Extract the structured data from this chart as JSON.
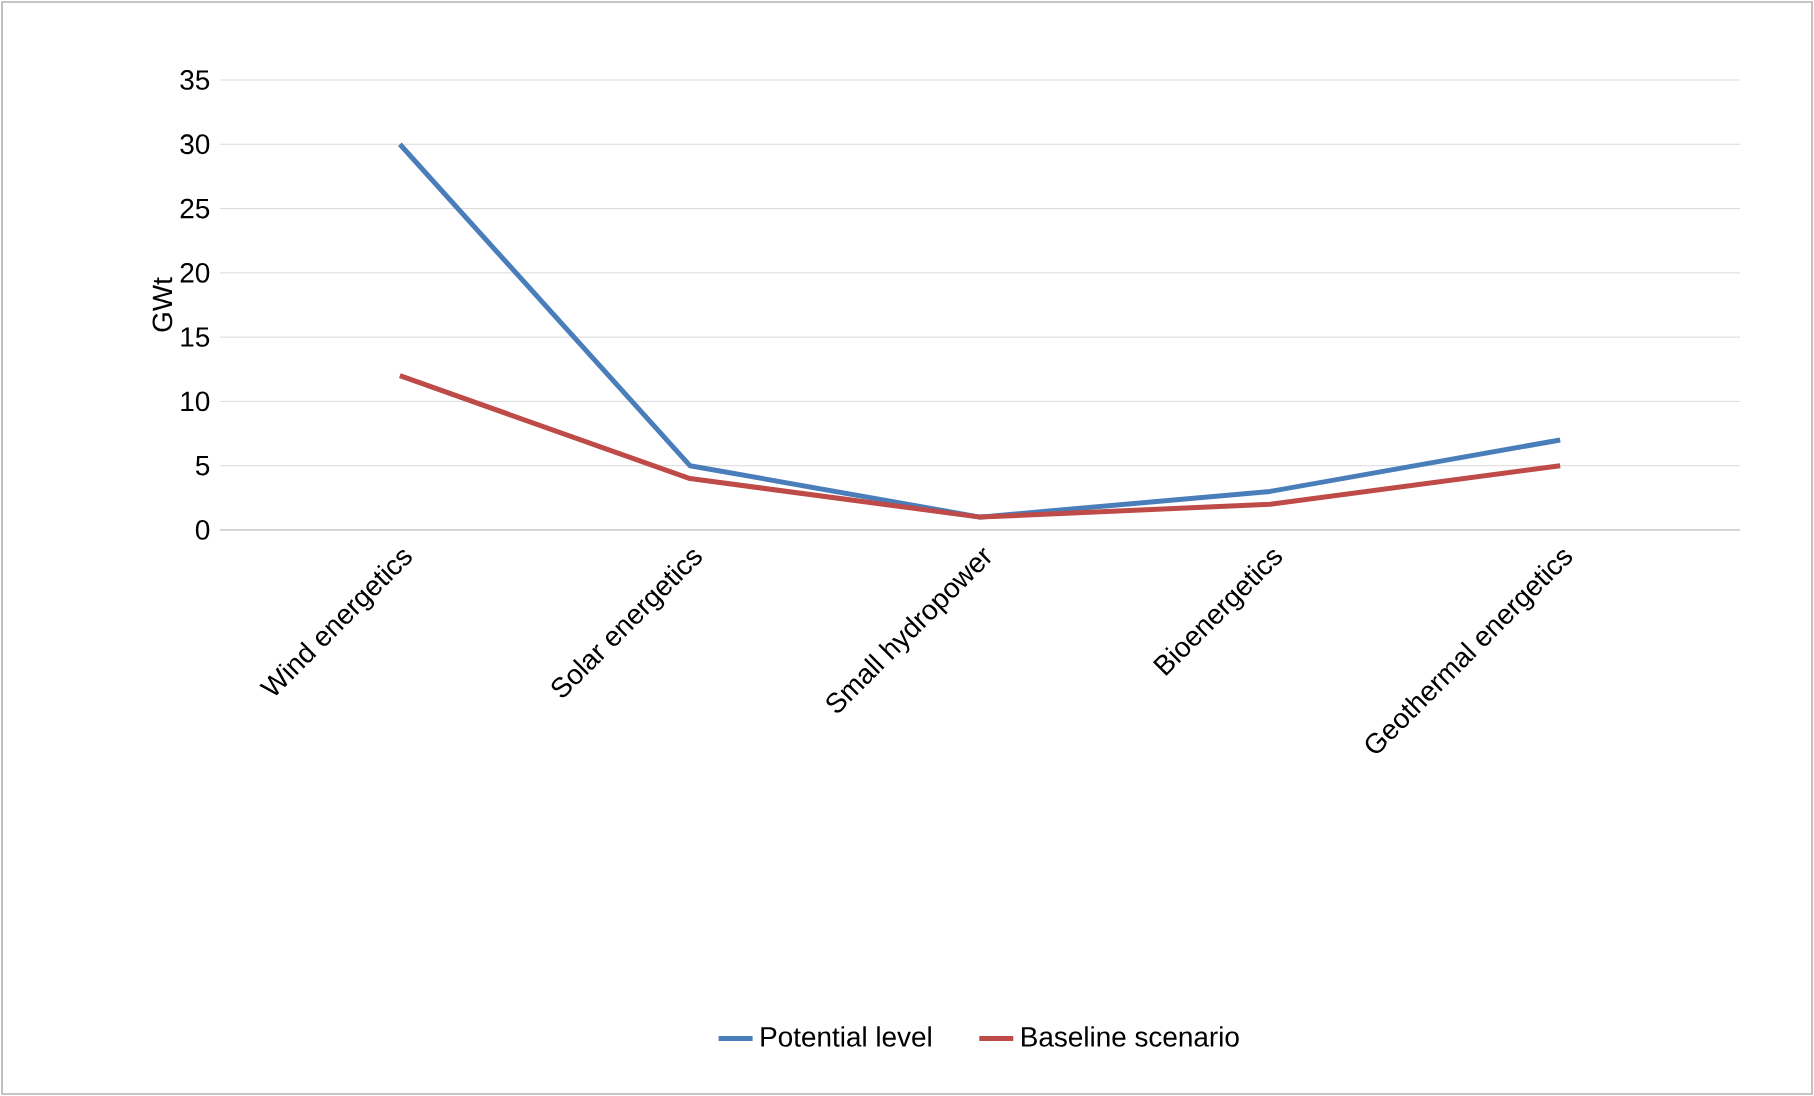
{
  "chart_data": {
    "type": "line",
    "ylabel": "GWt",
    "categories": [
      "Wind energetics",
      "Solar energetics",
      "Small hydropower",
      "Bioenergetics",
      "Geothermal energetics"
    ],
    "series": [
      {
        "name": "Potential level",
        "color": "#4a7ebb",
        "values": [
          30,
          5,
          1,
          3,
          7
        ]
      },
      {
        "name": "Baseline scenario",
        "color": "#be4b48",
        "values": [
          12,
          4,
          1,
          2,
          5
        ]
      }
    ],
    "ylim": [
      0,
      35
    ],
    "yticks": [
      0,
      5,
      10,
      15,
      20,
      25,
      30,
      35
    ],
    "grid": "y",
    "legend": "bottom",
    "marker": "none",
    "line_style": "solid"
  }
}
